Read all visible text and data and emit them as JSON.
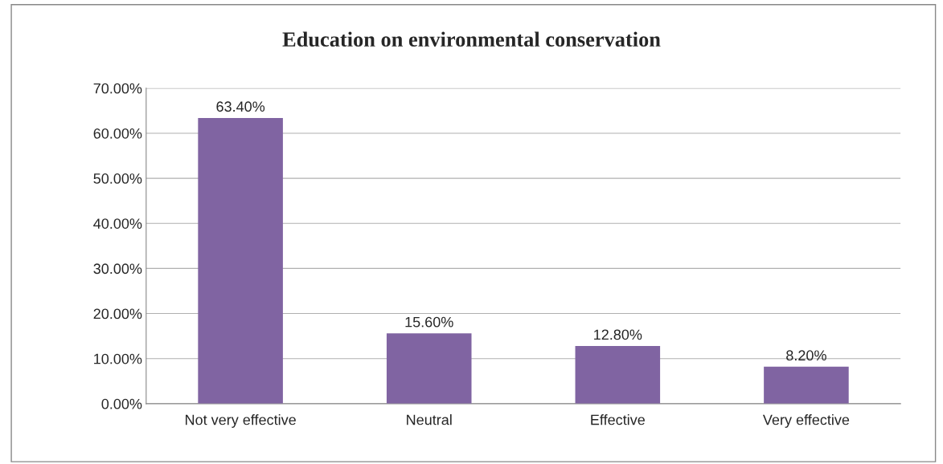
{
  "chart_data": {
    "type": "bar",
    "title": "Education on environmental conservation",
    "categories": [
      "Not very effective",
      "Neutral",
      "Effective",
      "Very effective"
    ],
    "values": [
      63.4,
      15.6,
      12.8,
      8.2
    ],
    "color": "#8064a2",
    "value_labels": [
      "63.40%",
      "15.60%",
      "12.80%",
      "8.20%"
    ],
    "ylim": [
      0,
      70
    ],
    "yticks": [
      {
        "value": 0,
        "label": "0.00%"
      },
      {
        "value": 10,
        "label": "10.00%"
      },
      {
        "value": 20,
        "label": "20.00%"
      },
      {
        "value": 30,
        "label": "30.00%"
      },
      {
        "value": 40,
        "label": "40.00%"
      },
      {
        "value": 50,
        "label": "50.00%"
      },
      {
        "value": 60,
        "label": "60.00%"
      },
      {
        "value": 70,
        "label": "70.00%"
      }
    ],
    "grid": "y",
    "legend": false
  }
}
